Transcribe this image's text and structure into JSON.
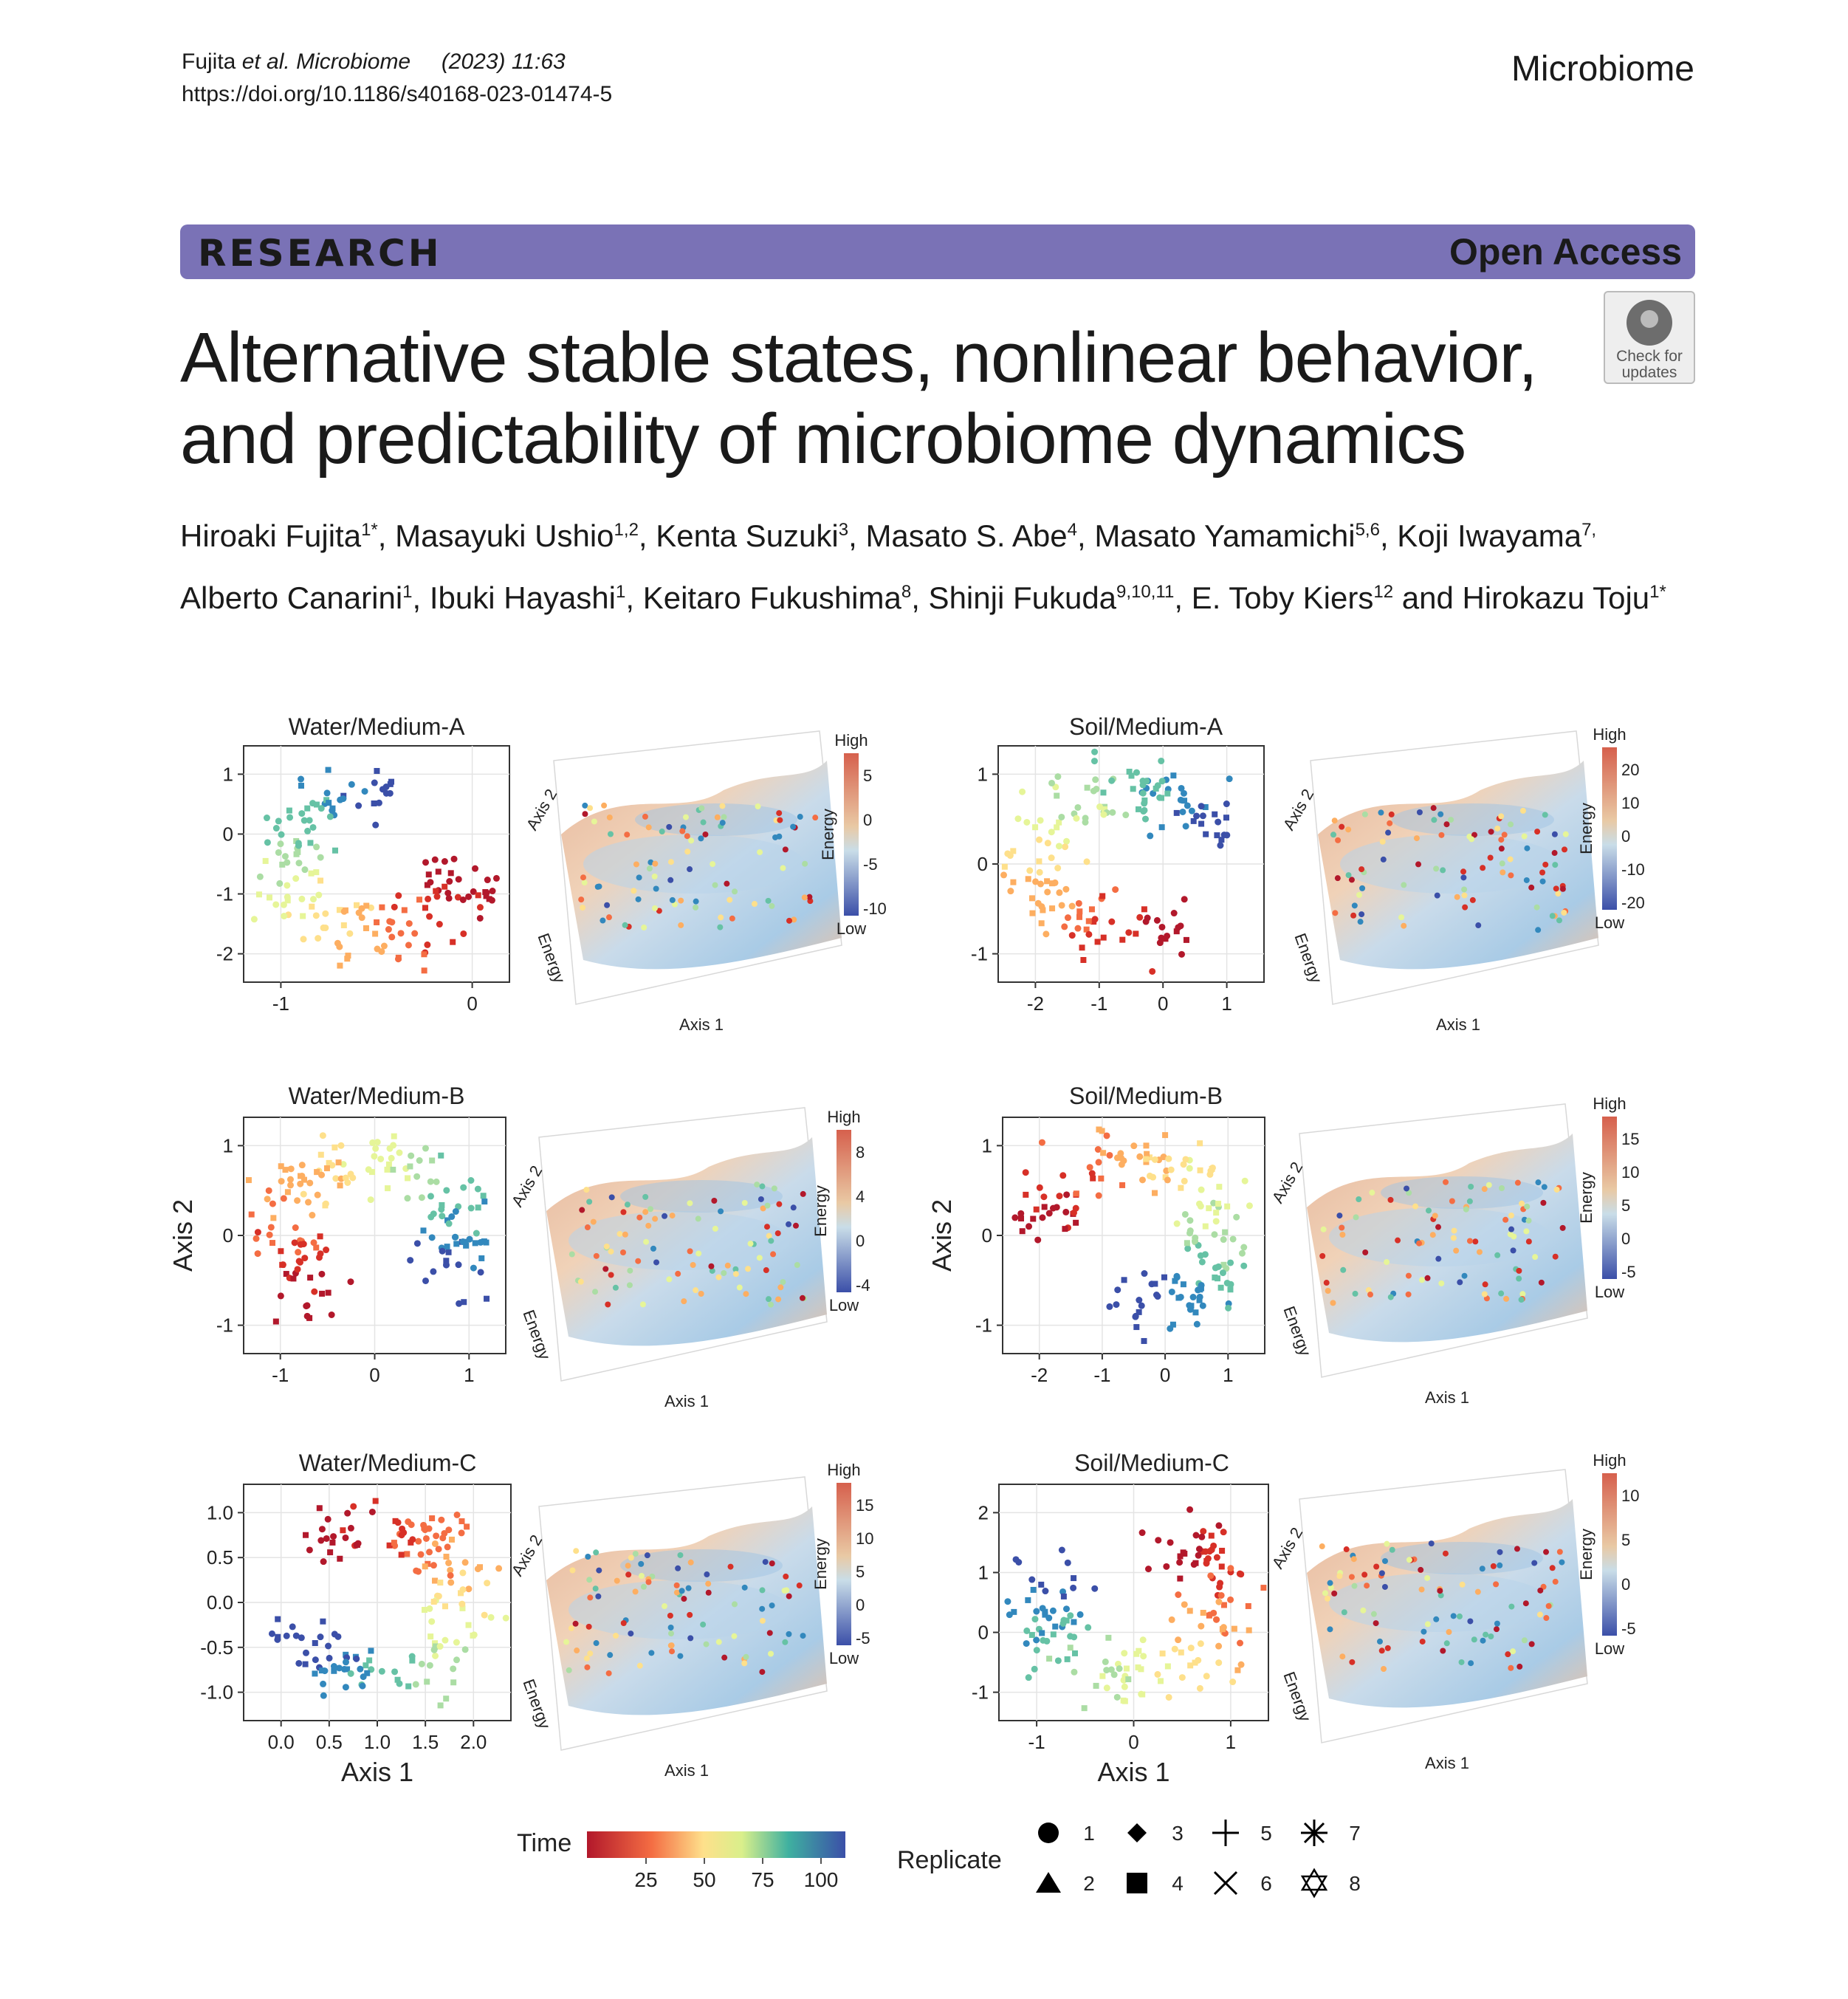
{
  "header": {
    "journal_line_author": "Fujita ",
    "journal_line_etal": "et al. Microbiome",
    "journal_line_year": "(2023) 11:63",
    "doi": "https://doi.org/10.1186/s40168-023-01474-5",
    "journal_name": "Microbiome"
  },
  "banner": {
    "type_label": "RESEARCH",
    "access_label": "Open Access"
  },
  "check_updates": {
    "line1": "Check for",
    "line2": "updates"
  },
  "article": {
    "title_line1": "Alternative stable states, nonlinear behavior,",
    "title_line2": "and predictability of microbiome dynamics",
    "authors_line1": "Hiroaki Fujita1*, Masayuki Ushio1,2, Kenta Suzuki3, Masato S. Abe4, Masato Yamamichi5,6, Koji Iwayama7,",
    "authors_line2": "Alberto Canarini1, Ibuki Hayashi1, Keitaro Fukushima8, Shinji Fukuda9,10,11, E. Toby Kiers12 and Hirokazu Toju1*"
  },
  "figure": {
    "panels": [
      {
        "title": "Water/Medium-A",
        "xticks": [
          "-1",
          "0"
        ],
        "yticks": [
          "1",
          "0",
          "-1",
          "-2"
        ],
        "energy_ticks": [
          "5",
          "0",
          "-5",
          "-10"
        ]
      },
      {
        "title": "Soil/Medium-A",
        "xticks": [
          "-2",
          "-1",
          "0",
          "1"
        ],
        "yticks": [
          "1",
          "0",
          "-1"
        ],
        "energy_ticks": [
          "20",
          "10",
          "0",
          "-10",
          "-20"
        ]
      },
      {
        "title": "Water/Medium-B",
        "xticks": [
          "-1",
          "0",
          "1"
        ],
        "yticks": [
          "1",
          "0",
          "-1"
        ],
        "energy_ticks": [
          "8",
          "4",
          "0",
          "-4"
        ]
      },
      {
        "title": "Soil/Medium-B",
        "xticks": [
          "-2",
          "-1",
          "0",
          "1"
        ],
        "yticks": [
          "1",
          "0",
          "-1"
        ],
        "energy_ticks": [
          "15",
          "10",
          "5",
          "0",
          "-5"
        ]
      },
      {
        "title": "Water/Medium-C",
        "xticks": [
          "0.0",
          "0.5",
          "1.0",
          "1.5",
          "2.0"
        ],
        "yticks": [
          "1.0",
          "0.5",
          "0.0",
          "-0.5",
          "-1.0"
        ],
        "energy_ticks": [
          "15",
          "10",
          "5",
          "0",
          "-5"
        ]
      },
      {
        "title": "Soil/Medium-C",
        "xticks": [
          "-1",
          "0",
          "1"
        ],
        "yticks": [
          "2",
          "1",
          "0",
          "-1"
        ],
        "energy_ticks": [
          "10",
          "5",
          "0",
          "-5"
        ]
      }
    ],
    "axis1_label": "Axis 1",
    "axis2_label": "Axis 2",
    "energy_label": "Energy",
    "high_label": "High",
    "low_label": "Low",
    "time_legend": {
      "title": "Time",
      "ticks": [
        "25",
        "50",
        "75",
        "100"
      ]
    },
    "replicate_legend": {
      "title": "Replicate",
      "items": [
        "1",
        "2",
        "3",
        "4",
        "5",
        "6",
        "7",
        "8"
      ]
    },
    "colors": {
      "banner": "#7a72b6",
      "time_low": "#b2182b",
      "time_mid": "#f7f0a0",
      "time_high": "#3b4fa8"
    }
  }
}
